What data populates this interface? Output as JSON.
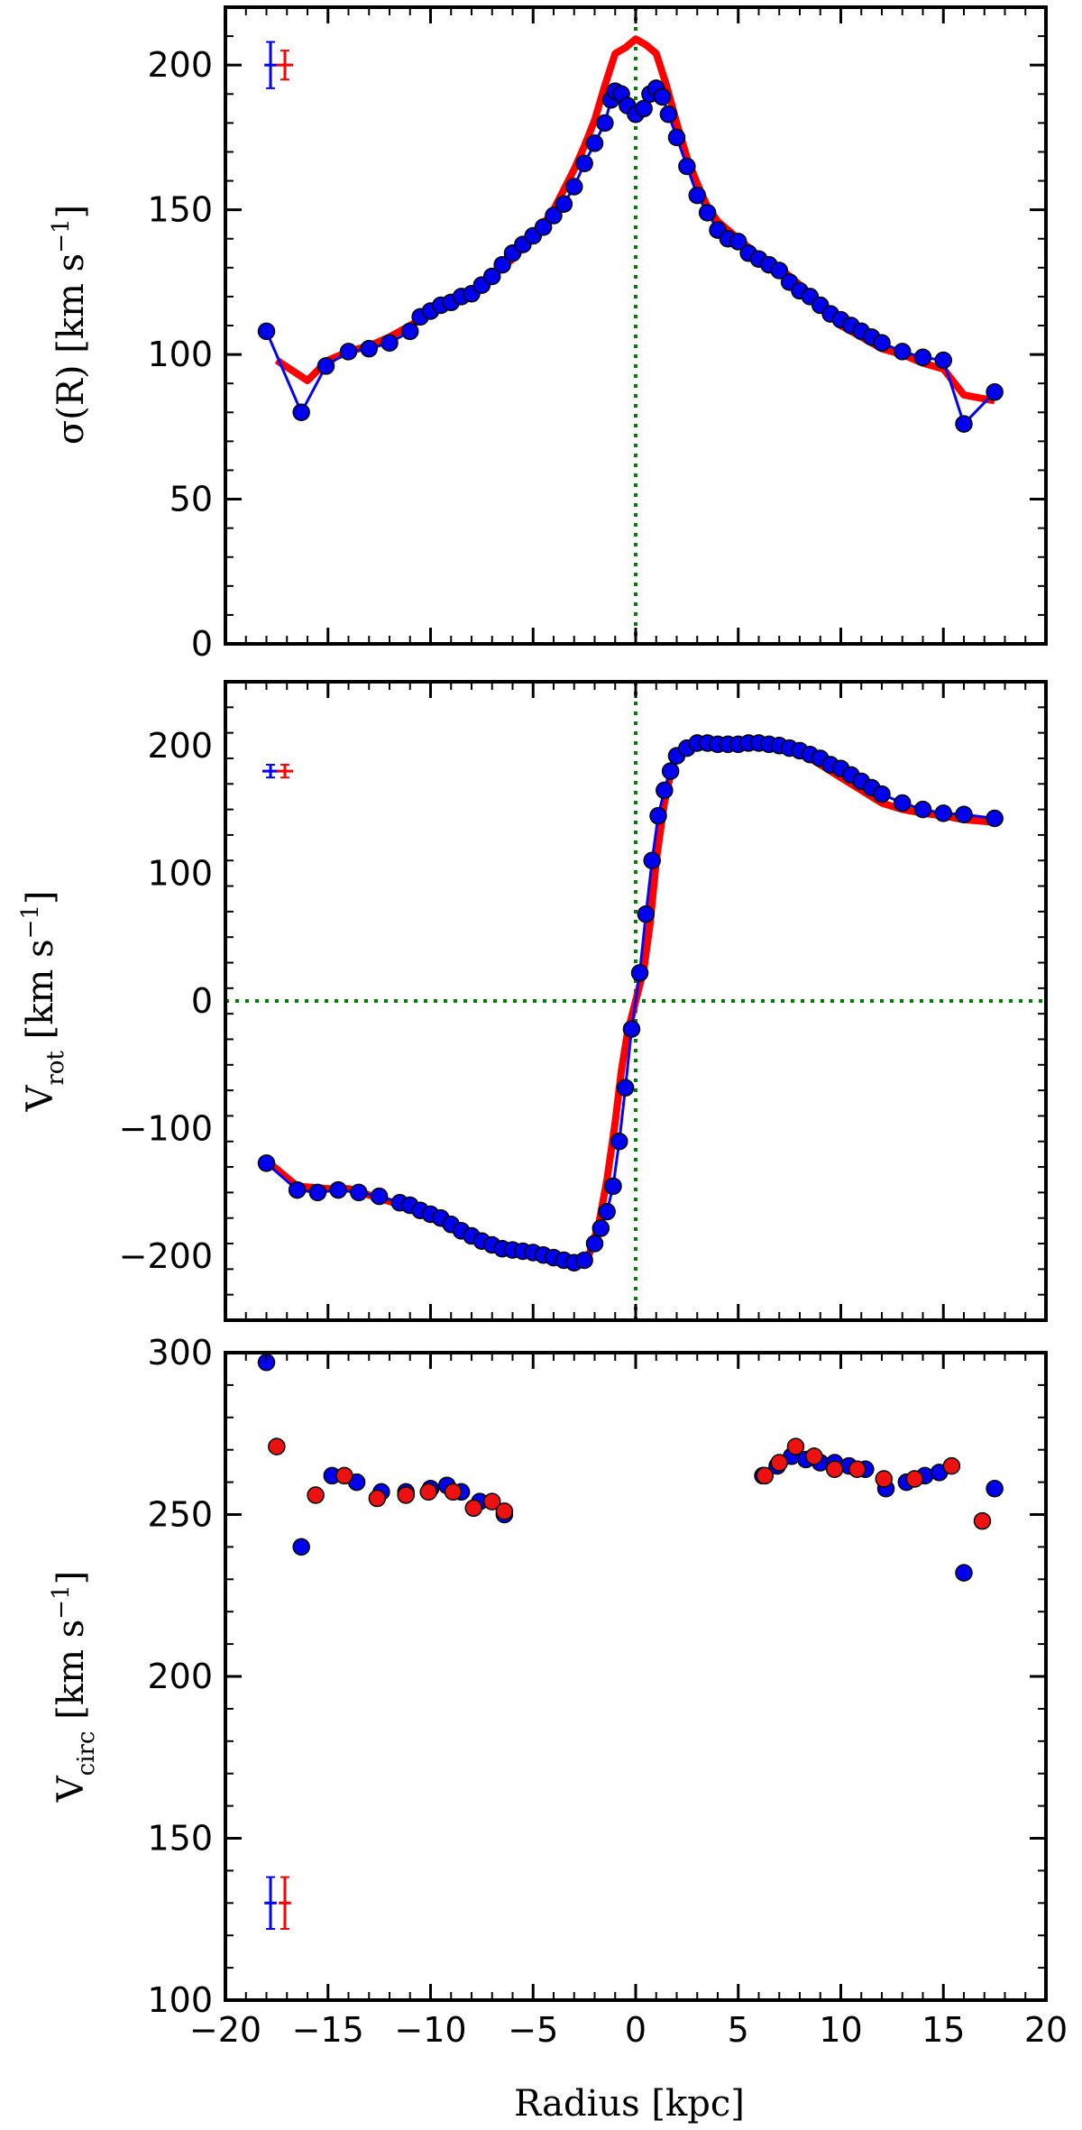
{
  "figure": {
    "xlabel": "Radius [kpc]",
    "x_tick_labels": [
      "−20",
      "−15",
      "−10",
      "−5",
      "0",
      "5",
      "10",
      "15",
      "20"
    ]
  },
  "colors": {
    "blue": "#0000ff",
    "red": "#ff0000",
    "green": "#008000",
    "marker_blue": "#0000ee",
    "marker_red": "#ee1111"
  },
  "chart_data": [
    {
      "type": "line",
      "name": "velocity-dispersion",
      "ylabel_main": "σ(R) [km s",
      "ylabel_sup": "−1",
      "ylabel_end": "]",
      "xlim": [
        -20,
        20
      ],
      "ylim": [
        0,
        220
      ],
      "y_ticks": [
        0,
        50,
        100,
        150,
        200
      ],
      "y_tick_labels": [
        "0",
        "50",
        "100",
        "150",
        "200"
      ],
      "vline_x": 0,
      "errorbars": [
        {
          "x": -17.8,
          "y": 200,
          "dx": 0.3,
          "dy": 8,
          "color": "blue"
        },
        {
          "x": -17.1,
          "y": 200,
          "dx": 0.4,
          "dy": 5,
          "color": "red"
        }
      ],
      "series": [
        {
          "name": "model",
          "color": "red",
          "style": "line",
          "x": [
            -17.5,
            -16,
            -15,
            -14,
            -13,
            -12,
            -11,
            -10,
            -9,
            -8,
            -7.5,
            -7,
            -6.5,
            -6,
            -5.5,
            -5,
            -4.5,
            -4,
            -3.5,
            -3,
            -2.5,
            -2,
            -1.5,
            -1,
            -0.5,
            0,
            0.5,
            1,
            1.5,
            2,
            2.5,
            3,
            3.5,
            4,
            4.5,
            5,
            5.5,
            6,
            7,
            8,
            9,
            10,
            11,
            12,
            13,
            14,
            15,
            16,
            17.5
          ],
          "y": [
            98,
            91,
            98,
            101,
            103,
            106,
            110,
            114,
            118,
            121,
            125,
            127,
            130,
            133,
            137,
            141,
            145,
            150,
            157,
            164,
            172,
            181,
            193,
            204,
            206,
            209,
            207,
            204,
            193,
            180,
            168,
            159,
            151,
            146,
            143,
            140,
            137,
            134,
            130,
            124,
            117,
            110,
            106,
            102,
            100,
            97,
            95,
            86,
            84
          ]
        },
        {
          "name": "observed",
          "color": "blue",
          "style": "line-markers",
          "x": [
            -18,
            -16.3,
            -15.1,
            -14,
            -13,
            -12,
            -11,
            -10.5,
            -10,
            -9.5,
            -9,
            -8.5,
            -8,
            -7.5,
            -7,
            -6.5,
            -6,
            -5.5,
            -5,
            -4.5,
            -4,
            -3.5,
            -3,
            -2.5,
            -2,
            -1.5,
            -1.2,
            -1,
            -0.7,
            -0.4,
            0,
            0.4,
            0.7,
            1,
            1.3,
            1.6,
            2,
            2.5,
            3,
            3.5,
            4,
            4.5,
            5,
            5.5,
            6,
            6.5,
            7,
            7.5,
            8,
            8.5,
            9,
            9.5,
            10,
            10.5,
            11,
            11.5,
            12,
            13,
            14,
            15,
            16,
            17.5
          ],
          "y": [
            108,
            80,
            96,
            101,
            102,
            104,
            108,
            113,
            115,
            117,
            118,
            120,
            121,
            124,
            127,
            131,
            135,
            138,
            141,
            144,
            148,
            152,
            158,
            166,
            173,
            180,
            188,
            191,
            190,
            186,
            183,
            185,
            190,
            192,
            189,
            183,
            175,
            165,
            155,
            149,
            143,
            140,
            139,
            135,
            133,
            131,
            129,
            125,
            122,
            120,
            117,
            114,
            112,
            110,
            108,
            106,
            104,
            101,
            99,
            98,
            76,
            87
          ]
        }
      ]
    },
    {
      "type": "line",
      "name": "rotation-velocity",
      "ylabel_main": "V",
      "ylabel_sub": "rot",
      "ylabel_rest": " [km s",
      "ylabel_sup": "−1",
      "ylabel_end": "]",
      "xlim": [
        -20,
        20
      ],
      "ylim": [
        -250,
        250
      ],
      "y_ticks": [
        -200,
        -100,
        0,
        100,
        200
      ],
      "y_tick_labels": [
        "−200",
        "−100",
        "0",
        "100",
        "200"
      ],
      "vline_x": 0,
      "hline_y": 0,
      "errorbars": [
        {
          "x": -17.8,
          "y": 180,
          "dx": 0.4,
          "dy": 5,
          "color": "blue"
        },
        {
          "x": -17.1,
          "y": 180,
          "dx": 0.4,
          "dy": 5,
          "color": "red"
        }
      ],
      "series": [
        {
          "name": "model",
          "color": "red",
          "style": "line",
          "x": [
            -18,
            -16.5,
            -15,
            -14,
            -13,
            -12,
            -11,
            -10,
            -9,
            -8,
            -7,
            -6,
            -5,
            -4,
            -3,
            -2.3,
            -1.8,
            -1.4,
            -1,
            -0.7,
            -0.4,
            0,
            0.4,
            0.7,
            1,
            1.4,
            1.8,
            2.3,
            3,
            4,
            5,
            6,
            7,
            8,
            9,
            10,
            11,
            12,
            13,
            14,
            15,
            16,
            17.5
          ],
          "y": [
            -125,
            -145,
            -147,
            -147,
            -152,
            -157,
            -162,
            -170,
            -177,
            -185,
            -192,
            -197,
            -200,
            -202,
            -206,
            -200,
            -175,
            -140,
            -95,
            -55,
            -25,
            0,
            25,
            60,
            110,
            155,
            185,
            197,
            203,
            203,
            203,
            202,
            200,
            195,
            185,
            175,
            165,
            155,
            150,
            147,
            145,
            142,
            140
          ]
        },
        {
          "name": "observed",
          "color": "blue",
          "style": "line-markers",
          "x": [
            -18,
            -16.5,
            -15.5,
            -14.5,
            -13.5,
            -12.5,
            -11.5,
            -11,
            -10.5,
            -10,
            -9.5,
            -9,
            -8.5,
            -8,
            -7.5,
            -7,
            -6.5,
            -6,
            -5.5,
            -5,
            -4.5,
            -4,
            -3.5,
            -3,
            -2.5,
            -2,
            -1.7,
            -1.4,
            -1.1,
            -0.8,
            -0.5,
            -0.2,
            0.2,
            0.5,
            0.8,
            1.1,
            1.4,
            1.7,
            2,
            2.5,
            3,
            3.5,
            4,
            4.5,
            5,
            5.5,
            6,
            6.5,
            7,
            7.5,
            8,
            8.5,
            9,
            9.5,
            10,
            10.5,
            11,
            11.5,
            12,
            13,
            14,
            15,
            16,
            17.5
          ],
          "y": [
            -127,
            -148,
            -150,
            -148,
            -150,
            -153,
            -158,
            -160,
            -164,
            -167,
            -170,
            -175,
            -180,
            -184,
            -188,
            -191,
            -194,
            -195,
            -196,
            -197,
            -199,
            -201,
            -203,
            -205,
            -203,
            -190,
            -178,
            -165,
            -145,
            -110,
            -68,
            -22,
            22,
            68,
            110,
            145,
            165,
            180,
            192,
            198,
            202,
            202,
            201,
            201,
            201,
            202,
            202,
            201,
            200,
            198,
            196,
            193,
            190,
            185,
            182,
            177,
            172,
            167,
            162,
            155,
            150,
            147,
            146,
            143
          ]
        }
      ]
    },
    {
      "type": "scatter",
      "name": "circular-velocity",
      "ylabel_main": "V",
      "ylabel_sub": "circ",
      "ylabel_rest": " [km s",
      "ylabel_sup": "−1",
      "ylabel_end": "]",
      "xlim": [
        -20,
        20
      ],
      "ylim": [
        100,
        300
      ],
      "y_ticks": [
        100,
        150,
        200,
        250,
        300
      ],
      "y_tick_labels": [
        "100",
        "150",
        "200",
        "250",
        "300"
      ],
      "errorbars": [
        {
          "x": -17.8,
          "y": 130,
          "dx": 0.3,
          "dy": 8,
          "color": "blue"
        },
        {
          "x": -17.1,
          "y": 130,
          "dx": 0.3,
          "dy": 8,
          "color": "red"
        }
      ],
      "series": [
        {
          "name": "blue-points",
          "color": "blue",
          "style": "markers",
          "x": [
            -18,
            -16.3,
            -14.8,
            -13.6,
            -12.4,
            -11.2,
            -10,
            -9.2,
            -8.5,
            -7.6,
            -6.4,
            6.2,
            6.9,
            7.6,
            8.3,
            9,
            9.7,
            10.4,
            11.2,
            12.2,
            13.2,
            14.1,
            14.8,
            16,
            17.5
          ],
          "y": [
            297,
            240,
            262,
            260,
            257,
            257,
            258,
            259,
            257,
            254,
            250,
            262,
            265,
            268,
            267,
            266,
            266,
            265,
            264,
            258,
            260,
            262,
            263,
            232,
            258
          ]
        },
        {
          "name": "red-points",
          "color": "red",
          "style": "markers",
          "x": [
            -17.5,
            -15.6,
            -14.2,
            -12.6,
            -11.2,
            -10.1,
            -8.9,
            -7.9,
            -7,
            -6.4,
            6.3,
            7,
            7.8,
            8.7,
            9.7,
            10.8,
            12.1,
            13.6,
            15.4,
            16.9
          ],
          "y": [
            271,
            256,
            262,
            255,
            256,
            257,
            257,
            252,
            254,
            251,
            262,
            266,
            271,
            268,
            264,
            264,
            261,
            261,
            265,
            248
          ]
        }
      ]
    }
  ]
}
